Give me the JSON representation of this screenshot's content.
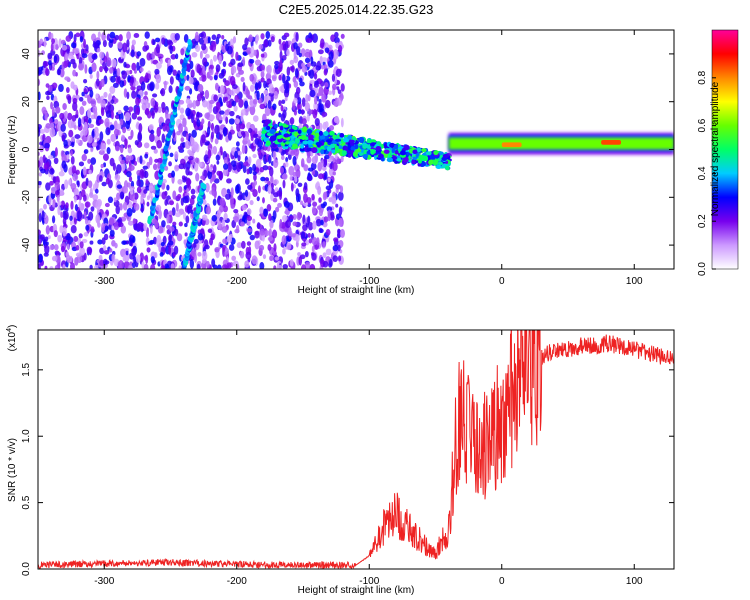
{
  "title": "C2E5.2025.014.22.35.G23",
  "chart_data": [
    {
      "type": "heatmap",
      "xlabel": "Height of straight line (km)",
      "ylabel": "Frequency (Hz)",
      "xlim": [
        -350,
        130
      ],
      "ylim": [
        -50,
        50
      ],
      "xticks": [
        -300,
        -200,
        -100,
        0,
        100
      ],
      "yticks": [
        -40,
        -20,
        0,
        20,
        40
      ],
      "colorbar": {
        "label": "Normalized spectral amplitude",
        "range": [
          0,
          1
        ],
        "ticks": [
          "0.0",
          "0.2",
          "0.4",
          "0.6",
          "0.8"
        ],
        "colors": [
          "#ffffff",
          "#cc99ff",
          "#7700ee",
          "#0000ff",
          "#00ccff",
          "#00ff66",
          "#66ff00",
          "#ffff00",
          "#ff8800",
          "#ff0000",
          "#ff0099"
        ]
      },
      "features": [
        {
          "x": [
            -350,
            -120
          ],
          "y": [
            -50,
            48
          ],
          "amplitude": 0.15
        },
        {
          "x": [
            -265,
            -235
          ],
          "y": [
            -30,
            45
          ],
          "amplitude": 0.3
        },
        {
          "x": [
            -240,
            -225
          ],
          "y": [
            -50,
            -15
          ],
          "amplitude": 0.3
        },
        {
          "x": [
            -180,
            -40
          ],
          "y": [
            -10,
            10
          ],
          "amplitude": 0.4
        },
        {
          "x": [
            -40,
            130
          ],
          "y": [
            0,
            5
          ],
          "amplitude": 0.6
        },
        {
          "x": [
            75,
            90
          ],
          "y": [
            2,
            4
          ],
          "amplitude": 0.85
        },
        {
          "x": [
            0,
            15
          ],
          "y": [
            1,
            3
          ],
          "amplitude": 0.8
        }
      ]
    },
    {
      "type": "line",
      "xlabel": "Height of straight line (km)",
      "ylabel": "SNR (10 * v/v)",
      "y_multiplier": "(x10",
      "y_multiplier_exp": "4",
      "y_multiplier_close": ")",
      "xlim": [
        -350,
        130
      ],
      "ylim": [
        0,
        18000
      ],
      "xticks": [
        -300,
        -200,
        -100,
        0,
        100
      ],
      "yticks": [
        "0.0",
        "0.5",
        "1.0",
        "1.5"
      ],
      "color": "#ee2222",
      "series": [
        {
          "x": [
            -350,
            -300,
            -250,
            -200,
            -150,
            -110,
            -100,
            -90,
            -80,
            -70,
            -60,
            -50,
            -40,
            -35,
            -30,
            -25,
            -20,
            -15,
            -10,
            -5,
            0,
            10,
            20,
            30,
            40,
            50,
            60,
            70,
            80,
            90,
            100,
            110,
            120,
            130
          ],
          "values": [
            300,
            400,
            500,
            350,
            300,
            300,
            1000,
            3000,
            4200,
            3000,
            2000,
            1200,
            3000,
            9000,
            13000,
            10000,
            10000,
            9000,
            10000,
            10500,
            11000,
            13500,
            15000,
            16000,
            16500,
            16500,
            16800,
            16800,
            17000,
            16800,
            16500,
            16300,
            16000,
            16000
          ]
        }
      ]
    }
  ]
}
